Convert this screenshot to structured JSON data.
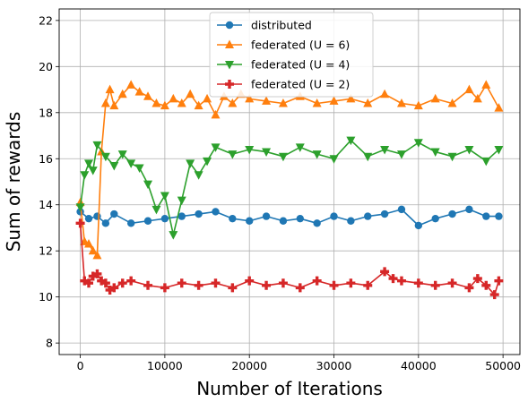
{
  "chart_data": {
    "type": "line",
    "title": "",
    "xlabel": "Number of Iterations",
    "ylabel": "Sum of rewards",
    "xlim": [
      -2500,
      52000
    ],
    "ylim": [
      7.5,
      22.5
    ],
    "xticks": [
      0,
      10000,
      20000,
      30000,
      40000,
      50000
    ],
    "yticks": [
      8,
      10,
      12,
      14,
      16,
      18,
      20,
      22
    ],
    "grid": true,
    "legend_position": "upper center",
    "series": [
      {
        "name": "distributed",
        "color": "#1f77b4",
        "marker": "circle",
        "x": [
          0,
          1000,
          2000,
          3000,
          4000,
          6000,
          8000,
          10000,
          12000,
          14000,
          16000,
          18000,
          20000,
          22000,
          24000,
          26000,
          28000,
          30000,
          32000,
          34000,
          36000,
          38000,
          40000,
          42000,
          44000,
          46000,
          48000,
          49500
        ],
        "y": [
          13.7,
          13.4,
          13.5,
          13.2,
          13.6,
          13.2,
          13.3,
          13.4,
          13.5,
          13.6,
          13.7,
          13.4,
          13.3,
          13.5,
          13.3,
          13.4,
          13.2,
          13.5,
          13.3,
          13.5,
          13.6,
          13.8,
          13.1,
          13.4,
          13.6,
          13.8,
          13.5,
          13.5
        ]
      },
      {
        "name": "federated (U = 6)",
        "color": "#ff7f0e",
        "marker": "triangle-up",
        "x": [
          0,
          500,
          1000,
          1500,
          2000,
          2500,
          3000,
          3500,
          4000,
          5000,
          6000,
          7000,
          8000,
          9000,
          10000,
          11000,
          12000,
          13000,
          14000,
          15000,
          16000,
          17000,
          18000,
          19000,
          20000,
          22000,
          24000,
          26000,
          28000,
          30000,
          32000,
          34000,
          36000,
          38000,
          40000,
          42000,
          44000,
          46000,
          47000,
          48000,
          49500
        ],
        "y": [
          14.1,
          12.4,
          12.3,
          12.0,
          11.8,
          16.3,
          18.4,
          19.0,
          18.3,
          18.8,
          19.2,
          18.9,
          18.7,
          18.4,
          18.3,
          18.6,
          18.4,
          18.8,
          18.3,
          18.6,
          17.9,
          18.7,
          18.4,
          18.8,
          18.6,
          18.5,
          18.4,
          18.7,
          18.4,
          18.5,
          18.6,
          18.4,
          18.8,
          18.4,
          18.3,
          18.6,
          18.4,
          19.0,
          18.6,
          19.2,
          18.2
        ]
      },
      {
        "name": "federated (U = 4)",
        "color": "#2ca02c",
        "marker": "triangle-down",
        "x": [
          0,
          500,
          1000,
          1500,
          2000,
          3000,
          4000,
          5000,
          6000,
          7000,
          8000,
          9000,
          10000,
          11000,
          12000,
          13000,
          14000,
          15000,
          16000,
          18000,
          20000,
          22000,
          24000,
          26000,
          28000,
          30000,
          32000,
          34000,
          36000,
          38000,
          40000,
          42000,
          44000,
          46000,
          48000,
          49500
        ],
        "y": [
          13.9,
          15.3,
          15.8,
          15.5,
          16.6,
          16.1,
          15.7,
          16.2,
          15.8,
          15.6,
          14.9,
          13.8,
          14.4,
          12.7,
          14.2,
          15.8,
          15.3,
          15.9,
          16.5,
          16.2,
          16.4,
          16.3,
          16.1,
          16.5,
          16.2,
          16.0,
          16.8,
          16.1,
          16.4,
          16.2,
          16.7,
          16.3,
          16.1,
          16.4,
          15.9,
          16.4
        ]
      },
      {
        "name": "federated (U = 2)",
        "color": "#d62728",
        "marker": "plus",
        "x": [
          0,
          500,
          1000,
          1500,
          2000,
          2500,
          3000,
          3500,
          4000,
          5000,
          6000,
          8000,
          10000,
          12000,
          14000,
          16000,
          18000,
          20000,
          22000,
          24000,
          26000,
          28000,
          30000,
          32000,
          34000,
          36000,
          37000,
          38000,
          40000,
          42000,
          44000,
          46000,
          47000,
          48000,
          49000,
          49500
        ],
        "y": [
          13.2,
          10.7,
          10.6,
          10.9,
          11.0,
          10.7,
          10.6,
          10.3,
          10.4,
          10.6,
          10.7,
          10.5,
          10.4,
          10.6,
          10.5,
          10.6,
          10.4,
          10.7,
          10.5,
          10.6,
          10.4,
          10.7,
          10.5,
          10.6,
          10.5,
          11.1,
          10.8,
          10.7,
          10.6,
          10.5,
          10.6,
          10.4,
          10.8,
          10.5,
          10.1,
          10.7
        ]
      }
    ]
  }
}
